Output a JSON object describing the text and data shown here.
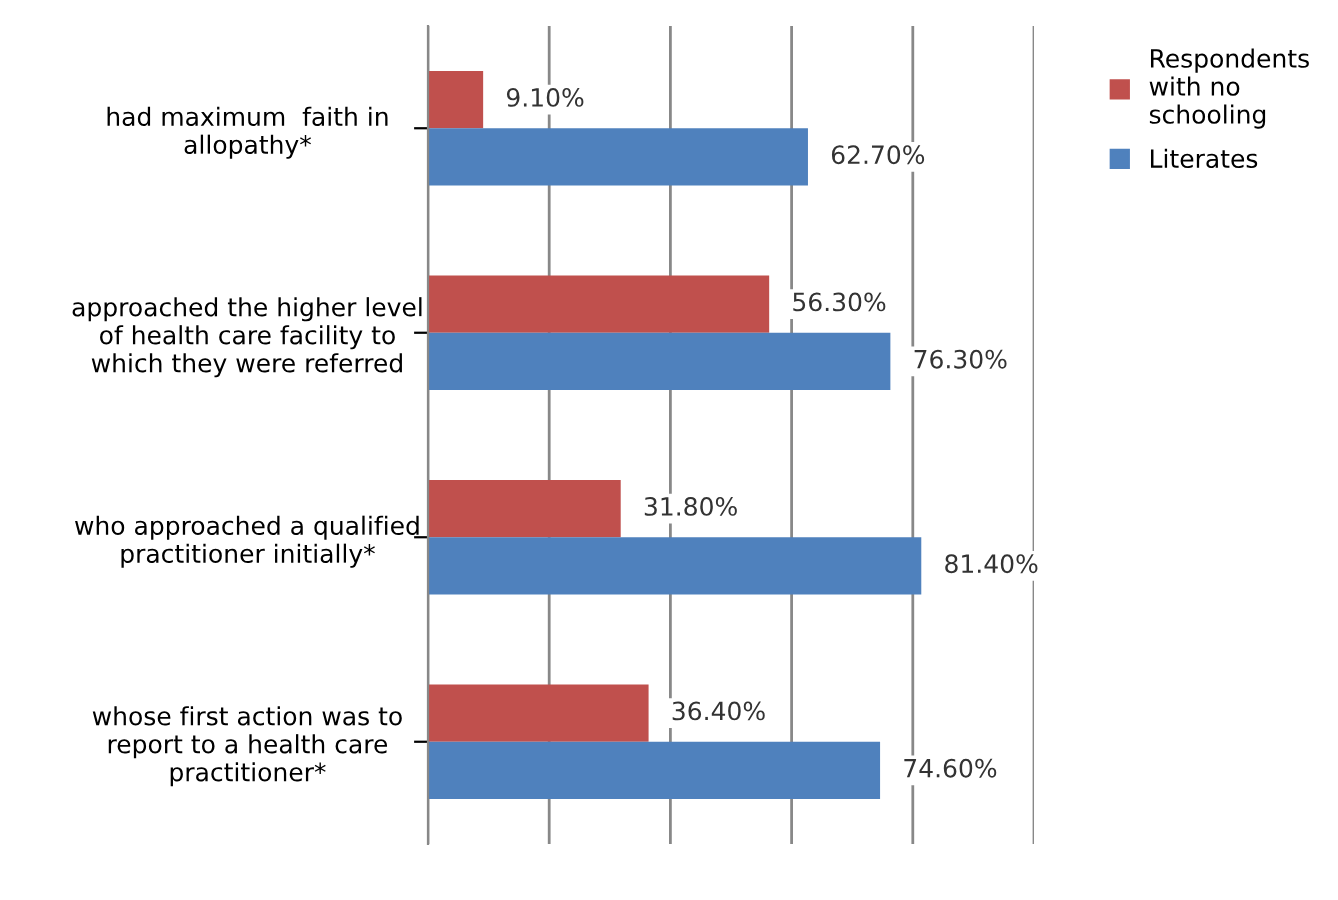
{
  "chart_data": {
    "type": "bar",
    "orientation": "horizontal",
    "categories": [
      "had maximum  faith in\nallopathy*",
      "approached the higher level\nof health care facility to\nwhich they were referred",
      "who approached a qualified\npractitioner initially*",
      "whose first action was to\nreport to a health care\npractitioner*"
    ],
    "series": [
      {
        "name": "Respondents\nwith no\nschooling",
        "color": "#c0504d",
        "values": [
          9.1,
          56.3,
          31.8,
          36.4
        ],
        "value_labels": [
          "9.10%",
          "56.30%",
          "31.80%",
          "36.40%"
        ]
      },
      {
        "name": "Literates",
        "color": "#4f81bd",
        "values": [
          62.7,
          76.3,
          81.4,
          74.6
        ],
        "value_labels": [
          "62.70%",
          "76.30%",
          "81.40%",
          "74.60%"
        ]
      }
    ],
    "xlim": [
      0,
      100
    ],
    "xticks": [
      {
        "value": 0,
        "label": null
      },
      {
        "value": 20,
        "label": null
      },
      {
        "value": 40,
        "label": null
      },
      {
        "value": 60,
        "label": null
      },
      {
        "value": 80,
        "label": null
      },
      {
        "value": 100,
        "label": null
      }
    ],
    "grid": "x",
    "legend": "right",
    "tick_labels": "y"
  }
}
